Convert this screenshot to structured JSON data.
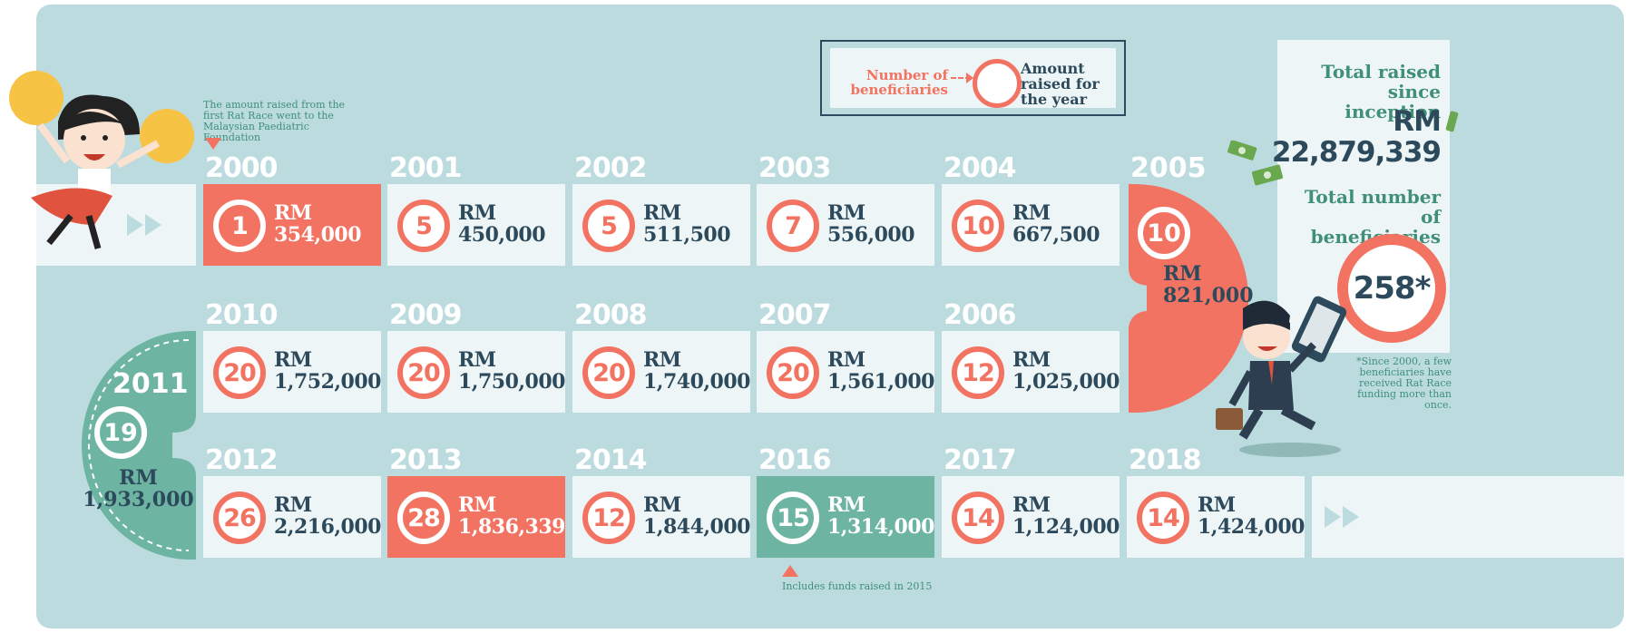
{
  "legend": {
    "beneficiaries_label": "Number of beneficiaries",
    "amount_label": "Amount raised for the year"
  },
  "totals": {
    "raised_title": "Total raised since inception",
    "raised_currency": "RM",
    "raised_amount": "22,879,339",
    "beneficiaries_title": "Total number of beneficiaries",
    "beneficiaries_total": "258*",
    "footnote": "*Since 2000, a few beneficiaries have received Rat Race funding more than once."
  },
  "notes": {
    "first_race": "The amount raised from the first Rat Race went to the Malaysian Paediatric Foundation",
    "funds_2015": "Includes funds raised in 2015"
  },
  "colors": {
    "background": "#bcdbdf",
    "cell": "#eef5f6",
    "accent_red": "#f37362",
    "accent_green": "#6db5a2",
    "navy": "#2c4a5c",
    "green_text": "#3f8f79"
  },
  "years": [
    {
      "year": "2000",
      "beneficiaries": "1",
      "amount": "RM 354,000",
      "highlight": "red"
    },
    {
      "year": "2001",
      "beneficiaries": "5",
      "amount": "RM 450,000",
      "highlight": "none"
    },
    {
      "year": "2002",
      "beneficiaries": "5",
      "amount": "RM 511,500",
      "highlight": "none"
    },
    {
      "year": "2003",
      "beneficiaries": "7",
      "amount": "RM 556,000",
      "highlight": "none"
    },
    {
      "year": "2004",
      "beneficiaries": "10",
      "amount": "RM 667,500",
      "highlight": "none"
    },
    {
      "year": "2005",
      "beneficiaries": "10",
      "amount": "RM 821,000",
      "highlight": "red-curve"
    },
    {
      "year": "2006",
      "beneficiaries": "12",
      "amount": "RM 1,025,000",
      "highlight": "none"
    },
    {
      "year": "2007",
      "beneficiaries": "20",
      "amount": "RM 1,561,000",
      "highlight": "none"
    },
    {
      "year": "2008",
      "beneficiaries": "20",
      "amount": "RM 1,740,000",
      "highlight": "none"
    },
    {
      "year": "2009",
      "beneficiaries": "20",
      "amount": "RM 1,750,000",
      "highlight": "none"
    },
    {
      "year": "2010",
      "beneficiaries": "20",
      "amount": "RM 1,752,000",
      "highlight": "none"
    },
    {
      "year": "2011",
      "beneficiaries": "19",
      "amount": "RM 1,933,000",
      "highlight": "green-curve"
    },
    {
      "year": "2012",
      "beneficiaries": "26",
      "amount": "RM 2,216,000",
      "highlight": "none"
    },
    {
      "year": "2013",
      "beneficiaries": "28",
      "amount": "RM 1,836,339",
      "highlight": "red"
    },
    {
      "year": "2014",
      "beneficiaries": "12",
      "amount": "RM 1,844,000",
      "highlight": "none"
    },
    {
      "year": "2016",
      "beneficiaries": "15",
      "amount": "RM 1,314,000",
      "highlight": "green"
    },
    {
      "year": "2017",
      "beneficiaries": "14",
      "amount": "RM 1,124,000",
      "highlight": "none"
    },
    {
      "year": "2018",
      "beneficiaries": "14",
      "amount": "RM 1,424,000",
      "highlight": "none"
    }
  ],
  "icons": {
    "start_arrows": "fast-forward-icon",
    "end_arrows": "fast-forward-icon",
    "cheerleader": "cheerleader-illustration",
    "businessman": "businessman-illustration",
    "money": "banknote-icon"
  }
}
